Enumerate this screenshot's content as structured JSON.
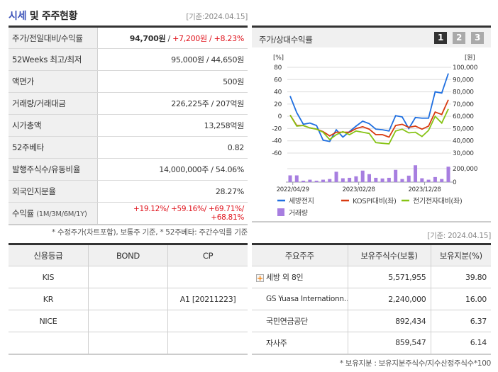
{
  "header": {
    "title_highlight": "시세",
    "title_rest": " 및 주주현황",
    "base_date": "[기준:2024.04.15]"
  },
  "price_table": {
    "rows": [
      {
        "label": "주가/전일대비/수익률",
        "price": "94,700원",
        "change": "+7,200원",
        "rate": "+8.23%"
      },
      {
        "label": "52Weeks 최고/최저",
        "value": "95,000원 / 44,650원"
      },
      {
        "label": "액면가",
        "value": "500원"
      },
      {
        "label": "거래량/거래대금",
        "value": "226,225주 / 207억원"
      },
      {
        "label": "시가총액",
        "value": "13,258억원"
      },
      {
        "label": "52주베타",
        "value": "0.82"
      },
      {
        "label": "발행주식수/유동비율",
        "value": "14,000,000주 / 54.06%"
      },
      {
        "label": "외국인지분율",
        "value": "28.27%"
      },
      {
        "label": "수익률",
        "label_sub": "(1M/3M/6M/1Y)",
        "returns": [
          "+19.12%",
          "+59.16%",
          "+69.71%",
          "+68.81%"
        ]
      }
    ],
    "note": "* 수정주가(차트포함), 보통주 기준, * 52주베타: 주간수익률 기준"
  },
  "credit": {
    "headers": [
      "신용등급",
      "BOND",
      "CP"
    ],
    "rows": [
      [
        "KIS",
        "",
        ""
      ],
      [
        "KR",
        "",
        "A1 [20211223]"
      ],
      [
        "NICE",
        "",
        ""
      ],
      [
        "",
        "",
        ""
      ]
    ]
  },
  "chart_panel": {
    "title": "주가/상대수익률",
    "pages": [
      "1",
      "2",
      "3"
    ],
    "active_page": "1"
  },
  "chart_data": {
    "type": "line",
    "left_axis": {
      "label": "[%]",
      "ticks": [
        "80",
        "60",
        "40",
        "20",
        "0",
        "-20",
        "-40",
        "-60"
      ],
      "ylim": [
        -60,
        80
      ]
    },
    "right_axis": {
      "label": "[원]",
      "ticks": [
        "100,000",
        "90,000",
        "80,000",
        "70,000",
        "60,000",
        "50,000",
        "40,000",
        "30,000"
      ],
      "ylim": [
        30000,
        100000
      ]
    },
    "volume_axis": {
      "ticks": [
        "200,000",
        "0"
      ]
    },
    "x_ticks": [
      "2022/04/29",
      "2023/02/28",
      "2023/12/28"
    ],
    "series": [
      {
        "name": "세방전지",
        "color": "#1f6fe0",
        "values": [
          33,
          6,
          -13,
          -11,
          -15,
          -39,
          -41,
          -22,
          -34,
          -25,
          -16,
          -8,
          -12,
          -21,
          -22,
          -24,
          1,
          -1,
          -20,
          -2,
          -3,
          -3,
          40,
          38,
          70
        ]
      },
      {
        "name": "KOSPI대비(좌)",
        "color": "#d83a10",
        "values": [
          2,
          -15,
          -15,
          -19,
          -21,
          -25,
          -32,
          -26,
          -26,
          -26,
          -20,
          -17,
          -21,
          -30,
          -30,
          -34,
          -15,
          -13,
          -18,
          -16,
          -21,
          -16,
          7,
          3,
          27
        ]
      },
      {
        "name": "전기전자대비(좌)",
        "color": "#86c314",
        "values": [
          2,
          -16,
          -15,
          -19,
          -21,
          -26,
          -38,
          -30,
          -25,
          -30,
          -24,
          -26,
          -28,
          -43,
          -44,
          -45,
          -24,
          -21,
          -27,
          -26,
          -33,
          -23,
          0,
          -11,
          12
        ]
      }
    ],
    "volume": {
      "name": "거래량",
      "color": "#a77ee0",
      "values": [
        100000,
        100000,
        21000,
        36000,
        21000,
        36000,
        46000,
        154000,
        57000,
        64000,
        86000,
        171000,
        118000,
        64000,
        54000,
        64000,
        182000,
        46000,
        96000,
        250000,
        57000,
        36000,
        75000,
        46000,
        229000
      ]
    },
    "grid": true,
    "legend": "bottom"
  },
  "holders": {
    "base_date": "[기준: 2024.04.15]",
    "headers": [
      "주요주주",
      "보유주식수(보통)",
      "보유지분(%)"
    ],
    "rows": [
      [
        "세방 외 8인",
        "5,571,955",
        "39.80"
      ],
      [
        "GS Yuasa Internationn…",
        "2,240,000",
        "16.00"
      ],
      [
        "국민연금공단",
        "892,434",
        "6.37"
      ],
      [
        "자사주",
        "859,547",
        "6.14"
      ]
    ],
    "note": "* 보유지분 : 보유지분주식수/지수산정주식수*100"
  }
}
